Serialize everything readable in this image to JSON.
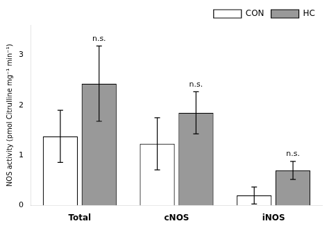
{
  "chart_data": {
    "type": "bar",
    "categories": [
      "Total",
      "cNOS",
      "iNOS"
    ],
    "series": [
      {
        "name": "CON",
        "color": "#ffffff",
        "values": [
          1.38,
          1.23,
          0.2
        ],
        "errors": [
          0.52,
          0.52,
          0.17
        ]
      },
      {
        "name": "HC",
        "color": "#999999",
        "values": [
          2.43,
          1.85,
          0.7
        ],
        "errors": [
          0.75,
          0.42,
          0.18
        ]
      }
    ],
    "ylabel": "NOS activity (pmol Citrulline mg⁻¹ min⁻¹)",
    "ylim": [
      0,
      3.6
    ],
    "yticks": [
      0,
      1,
      2,
      3
    ],
    "grid": false,
    "legend": "upper right",
    "annotations": [
      {
        "text": "n.s.",
        "series": "HC",
        "category": "Total"
      },
      {
        "text": "n.s.",
        "series": "HC",
        "category": "cNOS"
      },
      {
        "text": "n.s.",
        "series": "HC",
        "category": "iNOS"
      }
    ]
  }
}
